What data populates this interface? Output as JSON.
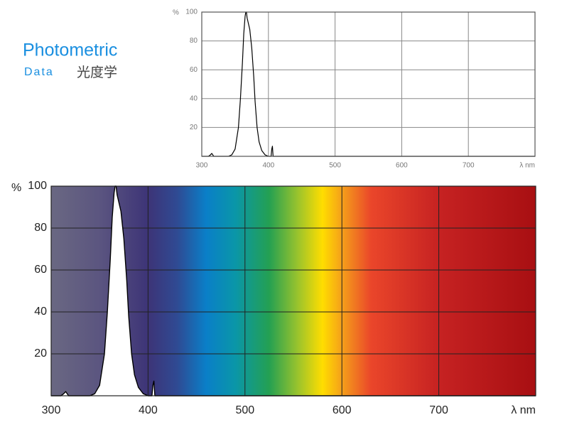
{
  "header": {
    "title": "Photometric",
    "subtitle": "Data",
    "subtitle_local": "光度学"
  },
  "chart_data": [
    {
      "type": "line",
      "y_label": "%",
      "x_label": "λ nm",
      "xlim": [
        300,
        800
      ],
      "ylim": [
        0,
        100
      ],
      "xticks": [
        300,
        400,
        500,
        600,
        700
      ],
      "yticks": [
        20,
        40,
        60,
        80,
        100
      ],
      "grid": true,
      "series": [
        {
          "color": "#000000",
          "x": [
            300,
            310,
            313,
            315,
            318,
            330,
            340,
            345,
            350,
            355,
            358,
            361,
            363,
            365,
            366,
            367,
            368,
            370,
            372,
            375,
            378,
            380,
            383,
            386,
            390,
            395,
            400,
            404,
            405,
            406,
            407,
            410,
            450,
            800
          ],
          "values": [
            0,
            0,
            1,
            2,
            0,
            0,
            0,
            1,
            5,
            20,
            40,
            65,
            85,
            97,
            100,
            100,
            96,
            92,
            88,
            75,
            55,
            38,
            20,
            10,
            4,
            1,
            0,
            0,
            5,
            7,
            0,
            0,
            0,
            0
          ]
        }
      ]
    },
    {
      "type": "line",
      "y_label": "%",
      "x_label": "λ nm",
      "xlim": [
        300,
        800
      ],
      "ylim": [
        0,
        100
      ],
      "xticks": [
        300,
        400,
        500,
        600,
        700
      ],
      "yticks": [
        20,
        40,
        60,
        80,
        100
      ],
      "grid": true,
      "spectrum_background": true,
      "fill_color": "#ffffff",
      "series": [
        {
          "color": "#000000",
          "x": [
            300,
            310,
            313,
            315,
            318,
            330,
            340,
            345,
            350,
            355,
            358,
            361,
            363,
            365,
            366,
            367,
            368,
            370,
            372,
            375,
            378,
            380,
            383,
            386,
            390,
            395,
            400,
            404,
            405,
            406,
            407,
            410,
            450,
            800
          ],
          "values": [
            0,
            0,
            1,
            2,
            0,
            0,
            0,
            1,
            5,
            20,
            40,
            65,
            85,
            97,
            100,
            100,
            96,
            92,
            88,
            75,
            55,
            38,
            20,
            10,
            4,
            1,
            0,
            0,
            5,
            7,
            0,
            0,
            0,
            0
          ]
        }
      ]
    }
  ]
}
